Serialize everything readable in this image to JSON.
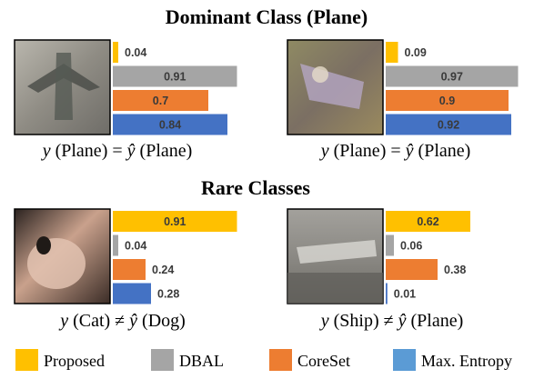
{
  "colors": {
    "proposed": "#FFC000",
    "dbal": "#A5A5A5",
    "coreset": "#ED7D31",
    "max_entropy": "#4472C4",
    "max_entropy_legend": "#5B9BD5"
  },
  "chart_data": {
    "type": "bar",
    "orientation": "horizontal",
    "series_names": [
      "Proposed",
      "DBAL",
      "CoreSet",
      "Max. Entropy"
    ],
    "xlim": [
      0,
      1
    ],
    "sections": [
      {
        "title": "Dominant Class (Plane)",
        "panels": [
          {
            "caption": {
              "y_var": "y",
              "y_label": "(Plane)",
              "relation": "=",
              "yhat_var": "ŷ",
              "yhat_label": "(Plane)"
            },
            "values": [
              0.04,
              0.91,
              0.7,
              0.84
            ],
            "labels": [
              "0.04",
              "0.91",
              "0.7",
              "0.84"
            ]
          },
          {
            "caption": {
              "y_var": "y",
              "y_label": "(Plane)",
              "relation": "=",
              "yhat_var": "ŷ",
              "yhat_label": "(Plane)"
            },
            "values": [
              0.09,
              0.97,
              0.9,
              0.92
            ],
            "labels": [
              "0.09",
              "0.97",
              "0.9",
              "0.92"
            ]
          }
        ]
      },
      {
        "title": "Rare Classes",
        "panels": [
          {
            "caption": {
              "y_var": "y",
              "y_label": "(Cat)",
              "relation": "≠",
              "yhat_var": "ŷ",
              "yhat_label": "(Dog)"
            },
            "values": [
              0.91,
              0.04,
              0.24,
              0.28
            ],
            "labels": [
              "0.91",
              "0.04",
              "0.24",
              "0.28"
            ]
          },
          {
            "caption": {
              "y_var": "y",
              "y_label": "(Ship)",
              "relation": "≠",
              "yhat_var": "ŷ",
              "yhat_label": "(Plane)"
            },
            "values": [
              0.62,
              0.06,
              0.38,
              0.01
            ],
            "labels": [
              "0.62",
              "0.06",
              "0.38",
              "0.01"
            ]
          }
        ]
      }
    ],
    "legend": [
      {
        "label": "Proposed"
      },
      {
        "label": "DBAL"
      },
      {
        "label": "CoreSet"
      },
      {
        "label": "Max. Entropy"
      }
    ],
    "legend_position": "bottom"
  }
}
